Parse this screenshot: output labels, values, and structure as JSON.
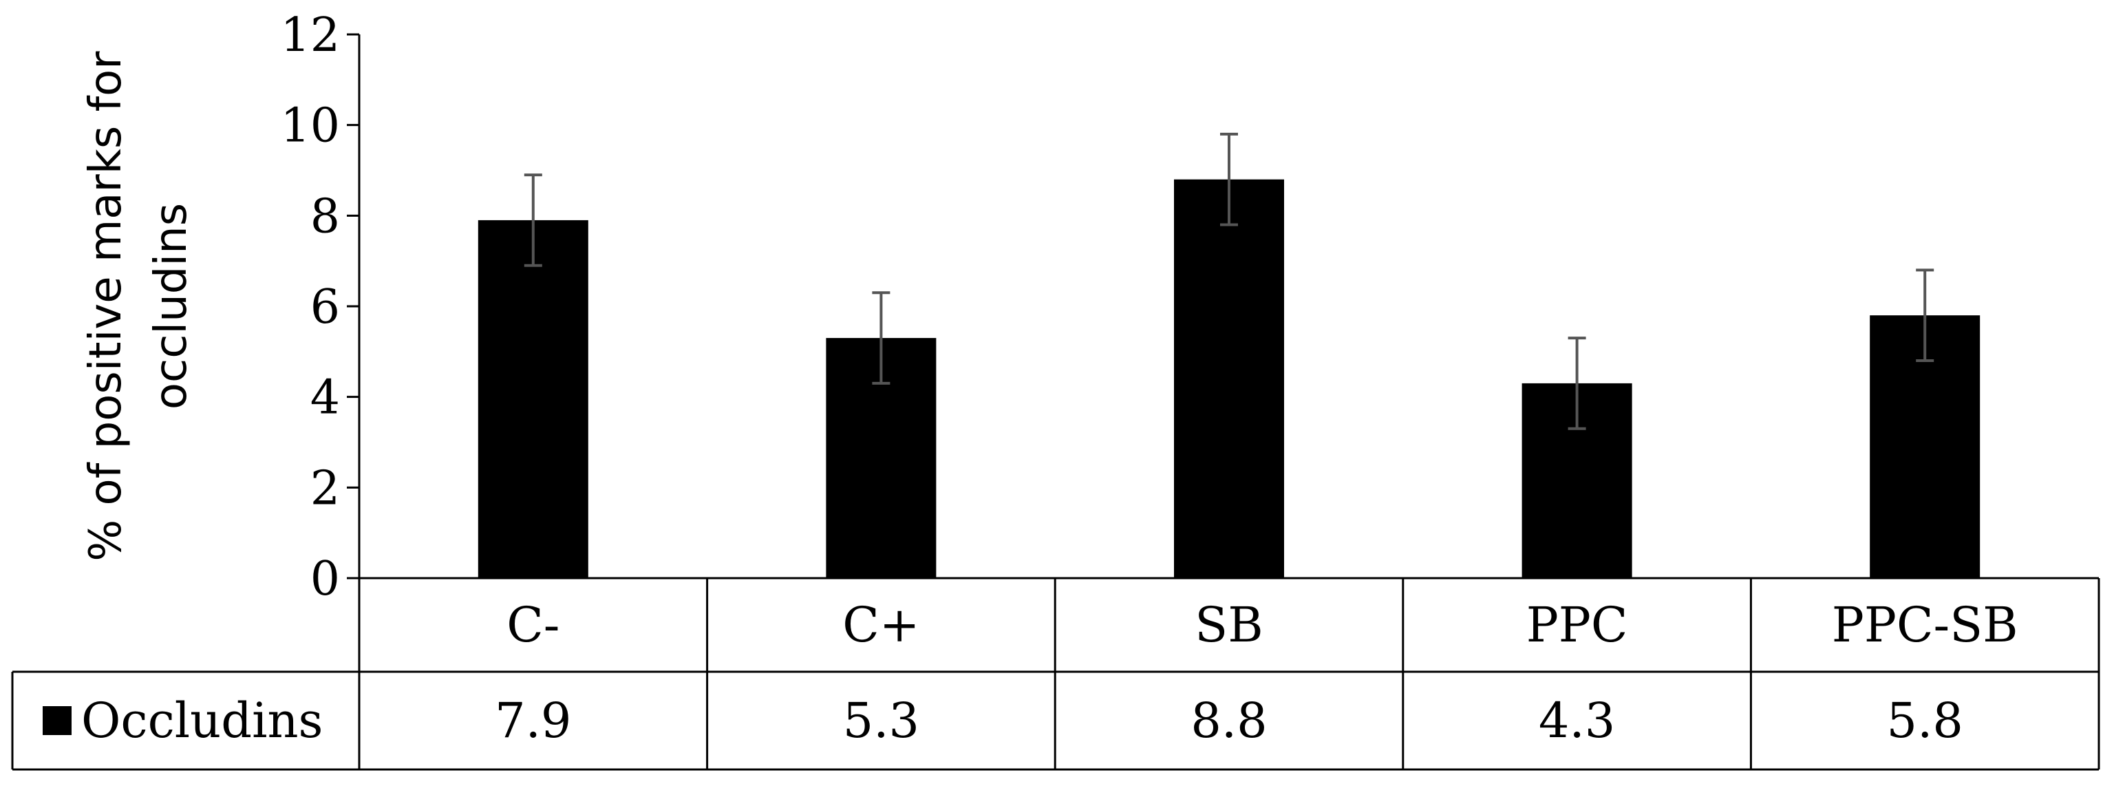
{
  "chart_data": {
    "type": "bar",
    "categories": [
      "C-",
      "C+",
      "SB",
      "PPC",
      "PPC-SB"
    ],
    "series": [
      {
        "name": "Occludins",
        "values": [
          7.9,
          5.3,
          8.8,
          4.3,
          5.8
        ],
        "error": [
          1.0,
          1.0,
          1.0,
          1.0,
          1.0
        ],
        "color": "#000000"
      }
    ],
    "value_labels": [
      "7.9",
      "5.3",
      "8.8",
      "4.3",
      "5.8"
    ],
    "ylabel": "% of positive marks for occludins",
    "ylim": [
      0,
      12
    ],
    "yticks": [
      0,
      2,
      4,
      6,
      8,
      10,
      12
    ],
    "grid": false,
    "legend": "data-table-left",
    "error_bar_color": "#555555"
  }
}
